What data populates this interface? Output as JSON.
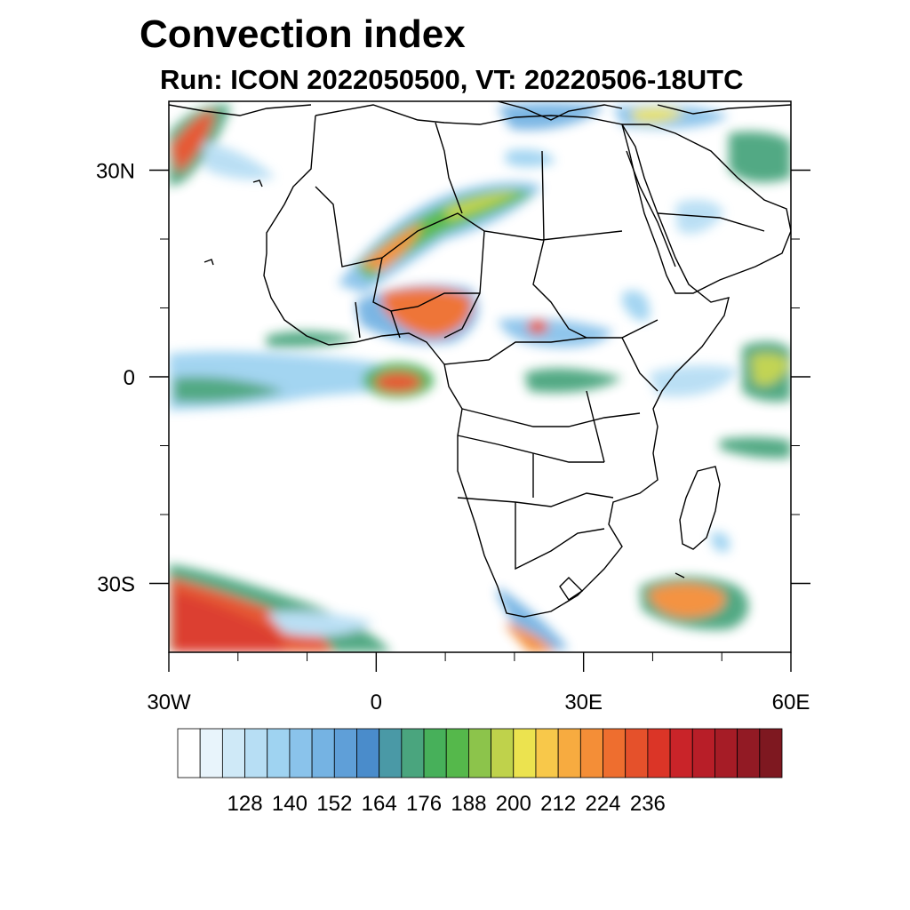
{
  "title": "Convection index",
  "subtitle": "Run: ICON 2022050500,  VT: 20220506-18UTC",
  "map": {
    "lon_range": [
      -30,
      60
    ],
    "lat_range": [
      -40,
      40
    ],
    "lon_tick_labels": [
      {
        "lon": -30,
        "label": "30W"
      },
      {
        "lon": 0,
        "label": "0"
      },
      {
        "lon": 30,
        "label": "30E"
      },
      {
        "lon": 60,
        "label": "60E"
      }
    ],
    "lat_tick_labels": [
      {
        "lat": 30,
        "label": "30N"
      },
      {
        "lat": 0,
        "label": "0"
      },
      {
        "lat": -30,
        "label": "30S"
      }
    ],
    "minor_lon_ticks": [
      -20,
      -10,
      10,
      20,
      40,
      50
    ],
    "minor_lat_ticks": [
      20,
      10,
      -10,
      -20
    ]
  },
  "colorbar": {
    "colors": [
      "#ffffff",
      "#e8f4fb",
      "#cfe9f7",
      "#b7def4",
      "#9fd3f1",
      "#8ac3eb",
      "#75b3e3",
      "#5f9fd8",
      "#4a8ccb",
      "#4a99a6",
      "#4aa57e",
      "#47b05a",
      "#55b84b",
      "#8cc44b",
      "#bfd24b",
      "#ece34f",
      "#f8c84a",
      "#f7ab40",
      "#f48e37",
      "#ee6e2f",
      "#e5512b",
      "#db3527",
      "#c92429",
      "#b81e28",
      "#a61c26",
      "#921a24",
      "#7e1820"
    ],
    "tick_labels": [
      "128",
      "140",
      "152",
      "164",
      "176",
      "188",
      "200",
      "212",
      "224",
      "236"
    ]
  }
}
